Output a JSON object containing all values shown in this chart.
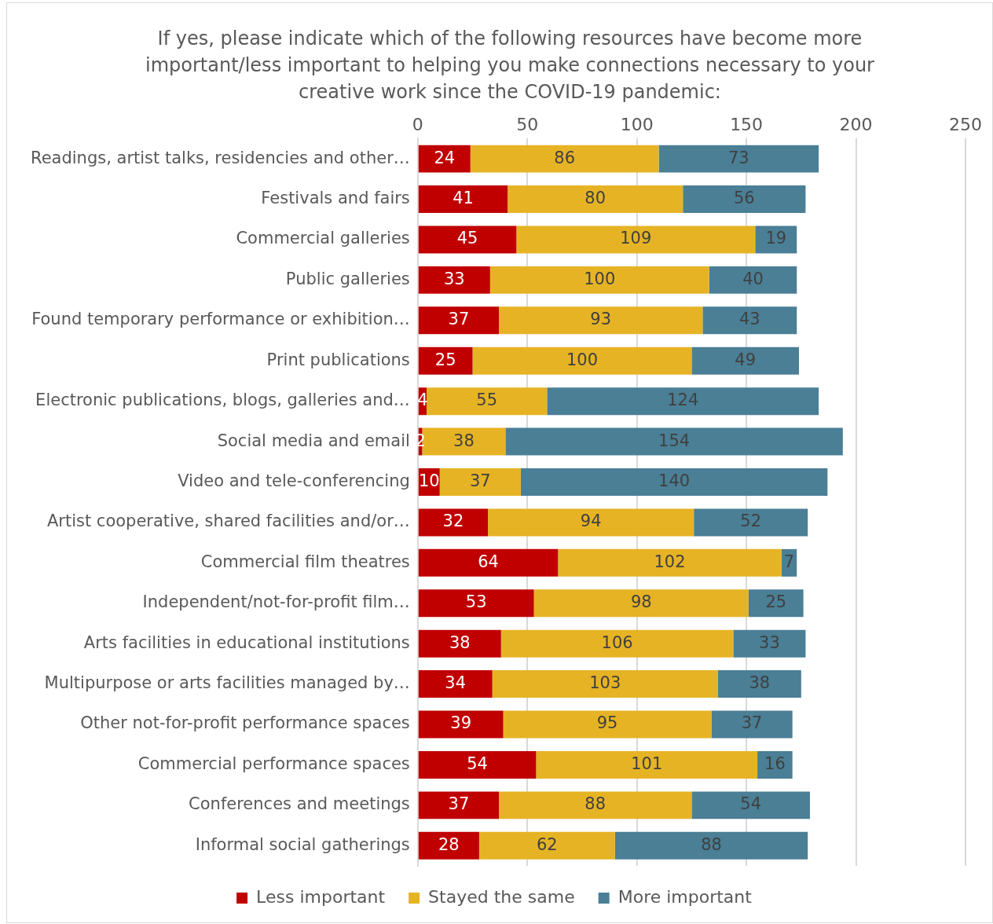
{
  "chart_data": {
    "type": "bar",
    "orientation": "horizontal",
    "stacked": true,
    "title": "If yes, please indicate which of the following resources have become more important/less important to helping you make connections necessary to your creative work since the COVID-19 pandemic:",
    "categories": [
      "Readings, artist talks, residencies and other…",
      "Festivals and fairs",
      "Commercial galleries",
      "Public galleries",
      "Found temporary performance or exhibition…",
      "Print publications",
      "Electronic publications, blogs, galleries and…",
      "Social media and email",
      "Video and tele-conferencing",
      "Artist cooperative, shared facilities and/or…",
      "Commercial film theatres",
      "Independent/not-for-profit film…",
      "Arts facilities in educational institutions",
      "Multipurpose or arts facilities managed by…",
      "Other not-for-profit performance spaces",
      "Commercial performance spaces",
      "Conferences and meetings",
      "Informal social gatherings"
    ],
    "series": [
      {
        "name": "Less important",
        "color": "#c00000",
        "values": [
          24,
          41,
          45,
          33,
          37,
          25,
          4,
          2,
          10,
          32,
          64,
          53,
          38,
          34,
          39,
          54,
          37,
          28
        ]
      },
      {
        "name": "Stayed the same",
        "color": "#e6b325",
        "values": [
          86,
          80,
          109,
          100,
          93,
          100,
          55,
          38,
          37,
          94,
          102,
          98,
          106,
          103,
          95,
          101,
          88,
          62
        ]
      },
      {
        "name": "More important",
        "color": "#4a7f96",
        "values": [
          73,
          56,
          19,
          40,
          43,
          49,
          124,
          154,
          140,
          52,
          7,
          25,
          33,
          38,
          37,
          16,
          54,
          88
        ]
      }
    ],
    "xlim": [
      0,
      250
    ],
    "xticks": [
      0,
      50,
      100,
      150,
      200,
      250
    ],
    "grid": "x",
    "legend": "bottom",
    "data_labels": true
  }
}
